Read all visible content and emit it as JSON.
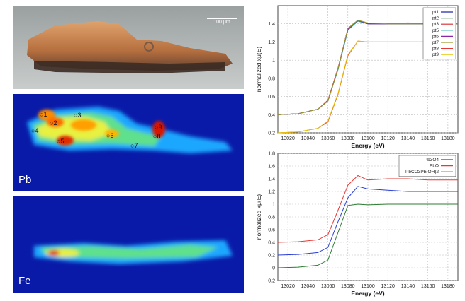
{
  "micrograph": {
    "scale_label": "100 μm"
  },
  "maps": [
    {
      "element": "Pb",
      "points": [
        {
          "label": "1"
        },
        {
          "label": "2"
        },
        {
          "label": "3"
        },
        {
          "label": "4"
        },
        {
          "label": "5"
        },
        {
          "label": "6"
        },
        {
          "label": "7"
        },
        {
          "label": "8"
        },
        {
          "label": "9"
        }
      ]
    },
    {
      "element": "Fe"
    }
  ],
  "chart_data": [
    {
      "type": "line",
      "xlabel": "Energy   (eV)",
      "ylabel": "normalized xμ(E)",
      "xlim": [
        13010,
        13190
      ],
      "ylim": [
        0.2,
        1.6
      ],
      "xticks": [
        13020,
        13040,
        13060,
        13080,
        13100,
        13120,
        13140,
        13160,
        13180
      ],
      "yticks": [
        0.2,
        0.4,
        0.6,
        0.8,
        1,
        1.2,
        1.4
      ],
      "grid": true,
      "legend_position": "top-right",
      "series": [
        {
          "name": "pt1",
          "color": "#1f2aa8",
          "values": [
            [
              13010,
              0.4
            ],
            [
              13030,
              0.41
            ],
            [
              13050,
              0.46
            ],
            [
              13060,
              0.55
            ],
            [
              13070,
              0.9
            ],
            [
              13080,
              1.35
            ],
            [
              13090,
              1.44
            ],
            [
              13100,
              1.4
            ],
            [
              13120,
              1.4
            ],
            [
              13140,
              1.4
            ],
            [
              13160,
              1.4
            ],
            [
              13190,
              1.4
            ]
          ]
        },
        {
          "name": "pt2",
          "color": "#2e7d32",
          "values": [
            [
              13010,
              0.4
            ],
            [
              13030,
              0.41
            ],
            [
              13050,
              0.46
            ],
            [
              13060,
              0.55
            ],
            [
              13070,
              0.9
            ],
            [
              13080,
              1.34
            ],
            [
              13090,
              1.43
            ],
            [
              13100,
              1.4
            ],
            [
              13120,
              1.4
            ],
            [
              13140,
              1.4
            ],
            [
              13160,
              1.4
            ],
            [
              13190,
              1.4
            ]
          ]
        },
        {
          "name": "pt3",
          "color": "#d32f2f",
          "values": [
            [
              13010,
              0.4
            ],
            [
              13030,
              0.41
            ],
            [
              13050,
              0.46
            ],
            [
              13060,
              0.56
            ],
            [
              13070,
              0.91
            ],
            [
              13080,
              1.35
            ],
            [
              13090,
              1.43
            ],
            [
              13100,
              1.4
            ],
            [
              13120,
              1.4
            ],
            [
              13140,
              1.41
            ],
            [
              13160,
              1.4
            ],
            [
              13190,
              1.4
            ]
          ]
        },
        {
          "name": "pt5",
          "color": "#00a3a3",
          "values": [
            [
              13010,
              0.4
            ],
            [
              13030,
              0.41
            ],
            [
              13050,
              0.46
            ],
            [
              13060,
              0.55
            ],
            [
              13070,
              0.89
            ],
            [
              13080,
              1.33
            ],
            [
              13090,
              1.43
            ],
            [
              13100,
              1.4
            ],
            [
              13120,
              1.4
            ],
            [
              13140,
              1.4
            ],
            [
              13160,
              1.4
            ],
            [
              13190,
              1.4
            ]
          ]
        },
        {
          "name": "pt6",
          "color": "#8e24aa",
          "values": [
            [
              13010,
              0.4
            ],
            [
              13030,
              0.41
            ],
            [
              13050,
              0.46
            ],
            [
              13060,
              0.55
            ],
            [
              13070,
              0.9
            ],
            [
              13080,
              1.34
            ],
            [
              13090,
              1.44
            ],
            [
              13100,
              1.4
            ],
            [
              13120,
              1.4
            ],
            [
              13140,
              1.4
            ],
            [
              13160,
              1.4
            ],
            [
              13190,
              1.4
            ]
          ]
        },
        {
          "name": "pt7",
          "color": "#9e9d24",
          "values": [
            [
              13010,
              0.4
            ],
            [
              13030,
              0.41
            ],
            [
              13050,
              0.46
            ],
            [
              13060,
              0.55
            ],
            [
              13070,
              0.9
            ],
            [
              13080,
              1.35
            ],
            [
              13090,
              1.44
            ],
            [
              13100,
              1.41
            ],
            [
              13120,
              1.4
            ],
            [
              13140,
              1.4
            ],
            [
              13160,
              1.4
            ],
            [
              13190,
              1.4
            ]
          ]
        },
        {
          "name": "pt8",
          "color": "#e53935",
          "values": [
            [
              13010,
              0.2
            ],
            [
              13030,
              0.21
            ],
            [
              13050,
              0.25
            ],
            [
              13060,
              0.32
            ],
            [
              13070,
              0.62
            ],
            [
              13080,
              1.05
            ],
            [
              13090,
              1.21
            ],
            [
              13100,
              1.2
            ],
            [
              13120,
              1.2
            ],
            [
              13140,
              1.2
            ],
            [
              13160,
              1.2
            ],
            [
              13190,
              1.2
            ]
          ]
        },
        {
          "name": "pt9",
          "color": "#e6c700",
          "values": [
            [
              13010,
              0.2
            ],
            [
              13030,
              0.21
            ],
            [
              13050,
              0.25
            ],
            [
              13060,
              0.33
            ],
            [
              13070,
              0.63
            ],
            [
              13080,
              1.06
            ],
            [
              13090,
              1.21
            ],
            [
              13100,
              1.2
            ],
            [
              13120,
              1.2
            ],
            [
              13140,
              1.2
            ],
            [
              13160,
              1.2
            ],
            [
              13190,
              1.2
            ]
          ]
        }
      ]
    },
    {
      "type": "line",
      "xlabel": "Energy   (eV)",
      "ylabel": "normalized xμ(E)",
      "xlim": [
        13010,
        13190
      ],
      "ylim": [
        -0.2,
        1.8
      ],
      "xticks": [
        13020,
        13040,
        13060,
        13080,
        13100,
        13120,
        13140,
        13160,
        13180
      ],
      "yticks": [
        -0.2,
        0,
        0.2,
        0.4,
        0.6,
        0.8,
        1,
        1.2,
        1.4,
        1.6,
        1.8
      ],
      "grid": true,
      "legend_position": "top-right",
      "series": [
        {
          "name": "Pb3O4",
          "color": "#2b3fd6",
          "values": [
            [
              13010,
              0.2
            ],
            [
              13030,
              0.21
            ],
            [
              13050,
              0.24
            ],
            [
              13060,
              0.32
            ],
            [
              13070,
              0.72
            ],
            [
              13080,
              1.1
            ],
            [
              13090,
              1.28
            ],
            [
              13100,
              1.24
            ],
            [
              13120,
              1.22
            ],
            [
              13140,
              1.2
            ],
            [
              13160,
              1.2
            ],
            [
              13190,
              1.2
            ]
          ]
        },
        {
          "name": "PbO",
          "color": "#e53935",
          "values": [
            [
              13010,
              0.4
            ],
            [
              13030,
              0.41
            ],
            [
              13050,
              0.44
            ],
            [
              13060,
              0.52
            ],
            [
              13070,
              0.9
            ],
            [
              13080,
              1.3
            ],
            [
              13090,
              1.45
            ],
            [
              13100,
              1.38
            ],
            [
              13120,
              1.4
            ],
            [
              13140,
              1.4
            ],
            [
              13160,
              1.38
            ],
            [
              13190,
              1.38
            ]
          ]
        },
        {
          "name": "PbCO3Pb(OH)2",
          "color": "#2e7d32",
          "values": [
            [
              13010,
              0.0
            ],
            [
              13030,
              0.01
            ],
            [
              13050,
              0.04
            ],
            [
              13060,
              0.12
            ],
            [
              13070,
              0.55
            ],
            [
              13080,
              0.98
            ],
            [
              13090,
              1.0
            ],
            [
              13100,
              0.99
            ],
            [
              13120,
              1.0
            ],
            [
              13140,
              1.0
            ],
            [
              13160,
              1.0
            ],
            [
              13190,
              1.0
            ]
          ]
        }
      ]
    }
  ]
}
